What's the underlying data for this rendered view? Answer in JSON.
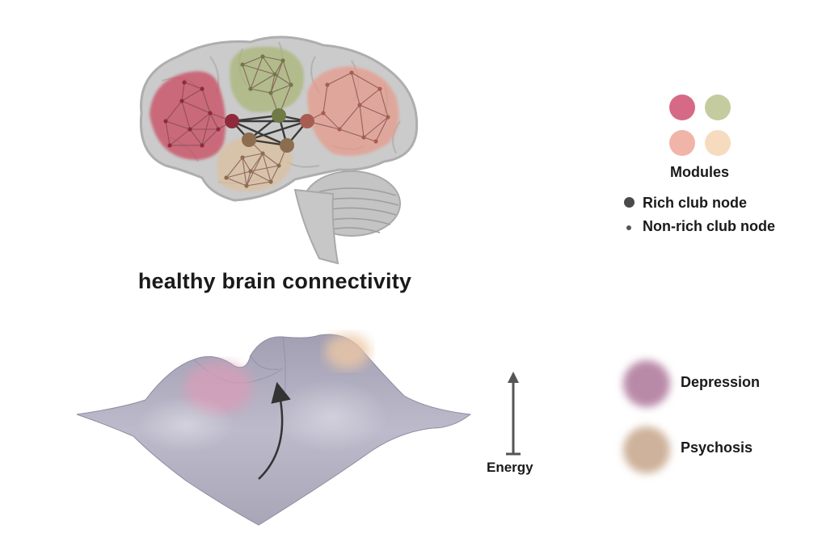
{
  "brain": {
    "title": "healthy brain connectivity"
  },
  "legend": {
    "modules_label": "Modules",
    "module_colors": [
      "#d66a86",
      "#c4cc9f",
      "#f0b5a8",
      "#f6dbbf"
    ],
    "rich_club_label": "Rich club node",
    "non_rich_club_label": "Non-rich club node"
  },
  "landscape": {
    "energy_label": "Energy",
    "states": [
      {
        "label": "Depression",
        "color": "#b98aa8"
      },
      {
        "label": "Psychosis",
        "color": "#ceb29b"
      }
    ]
  },
  "colors": {
    "module_red": "#c9485f",
    "module_green": "#a9b678",
    "module_salmon": "#e79a8a",
    "module_tan": "#dcc0a0",
    "brain_gray": "#cbcbcb",
    "surface": "#9e9bb0"
  }
}
